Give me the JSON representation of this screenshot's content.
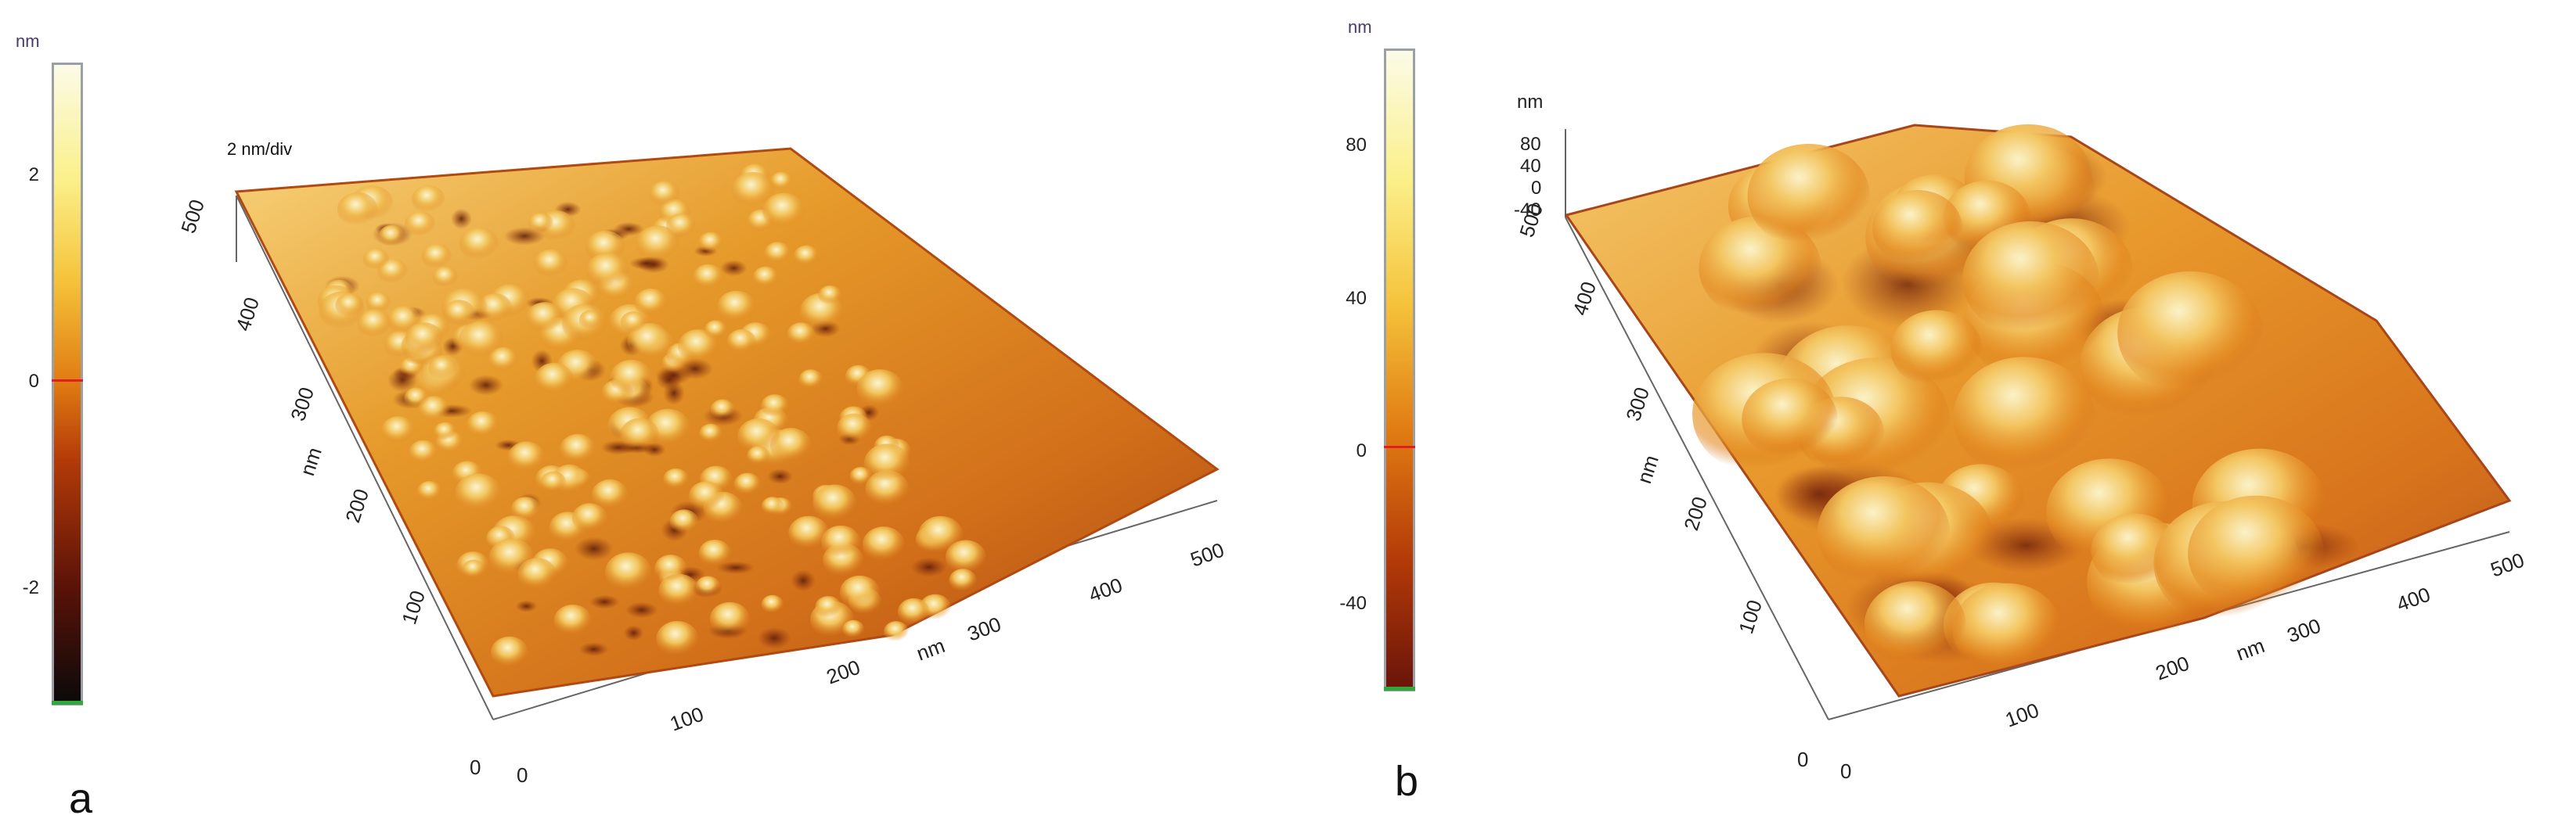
{
  "panel_a": {
    "letter": "a",
    "colorbar": {
      "unit": "nm",
      "ticks": [
        "2",
        "0",
        "-2"
      ],
      "range": [
        -3,
        3
      ],
      "colors": [
        "#0a0a0a",
        "#5a1208",
        "#b33a08",
        "#e07a12",
        "#f5c23a",
        "#fbf08a",
        "#fbfbe8"
      ]
    },
    "scale_label": "2 nm/div",
    "y_axis": {
      "ticks": [
        "500",
        "400",
        "300",
        "200",
        "100"
      ],
      "label": "nm"
    },
    "x_axis": {
      "ticks": [
        "100",
        "200",
        "300",
        "400",
        "500"
      ],
      "label": "nm"
    },
    "origin_x": "0",
    "origin_y": "0"
  },
  "panel_b": {
    "letter": "b",
    "colorbar": {
      "unit": "nm",
      "ticks": [
        "80",
        "40",
        "0",
        "-40"
      ],
      "range": [
        -60,
        100
      ],
      "colors": [
        "#6a140a",
        "#b33a08",
        "#e07a12",
        "#f5c23a",
        "#fbf08a",
        "#fbfbe8"
      ]
    },
    "z_axis": {
      "unit": "nm",
      "ticks": [
        "80",
        "40",
        "0",
        "-40"
      ]
    },
    "y_axis": {
      "ticks": [
        "500",
        "400",
        "300",
        "200",
        "100"
      ],
      "label": "nm"
    },
    "x_axis": {
      "ticks": [
        "100",
        "200",
        "300",
        "400",
        "500"
      ],
      "label": "nm"
    },
    "origin_x": "0",
    "origin_y": "0"
  }
}
